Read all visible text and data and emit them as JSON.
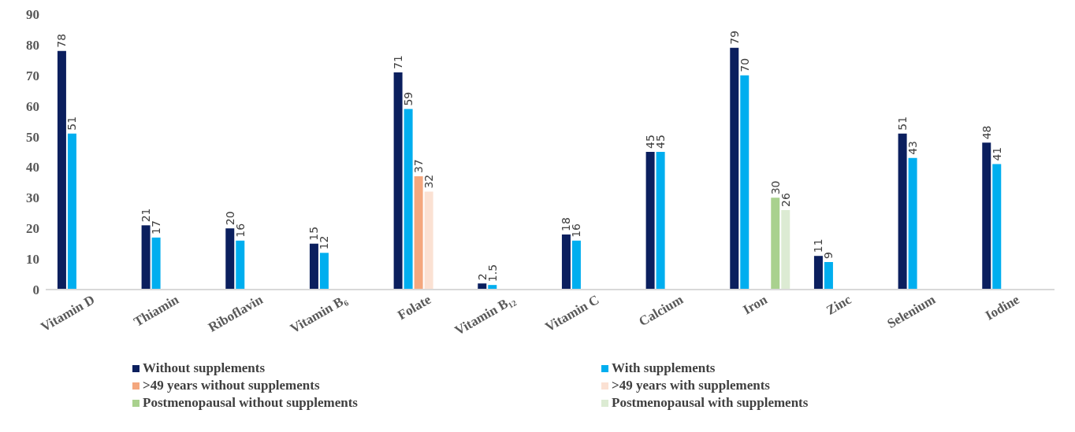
{
  "chart_data": {
    "type": "bar",
    "categories": [
      "Vitamin D",
      "Thiamin",
      "Riboflavin",
      "Vitamin B₆",
      "Folate",
      "Vitamin B₁₂",
      "Vitamin C",
      "Calcium",
      "Iron",
      "Zinc",
      "Selenium",
      "Iodine"
    ],
    "series": [
      {
        "name": "Without supplements",
        "color": "#0b1f5e",
        "values": [
          78,
          21,
          20,
          15,
          71,
          2,
          18,
          45,
          79,
          11,
          51,
          48
        ]
      },
      {
        "name": "With supplements",
        "color": "#00aeef",
        "values": [
          51,
          17,
          16,
          12,
          59,
          1.5,
          16,
          45,
          70,
          9,
          43,
          41
        ]
      },
      {
        "name": ">49 years without supplements",
        "color": "#f4a77e",
        "values": [
          null,
          null,
          null,
          null,
          37,
          null,
          null,
          null,
          null,
          null,
          null,
          null
        ]
      },
      {
        "name": ">49 years with supplements",
        "color": "#fbe1d3",
        "values": [
          null,
          null,
          null,
          null,
          32,
          null,
          null,
          null,
          null,
          null,
          null,
          null
        ]
      },
      {
        "name": "Postmenopausal without supplements",
        "color": "#a9d18e",
        "values": [
          null,
          null,
          null,
          null,
          null,
          null,
          null,
          null,
          30,
          null,
          null,
          null
        ]
      },
      {
        "name": "Postmenopausal with supplements",
        "color": "#dcebd3",
        "values": [
          null,
          null,
          null,
          null,
          null,
          null,
          null,
          null,
          26,
          null,
          null,
          null
        ]
      }
    ],
    "ylim": [
      0,
      90
    ],
    "yticks": [
      0,
      10,
      20,
      30,
      40,
      50,
      60,
      70,
      80,
      90
    ],
    "legend": "bottom",
    "data_labels": true
  }
}
